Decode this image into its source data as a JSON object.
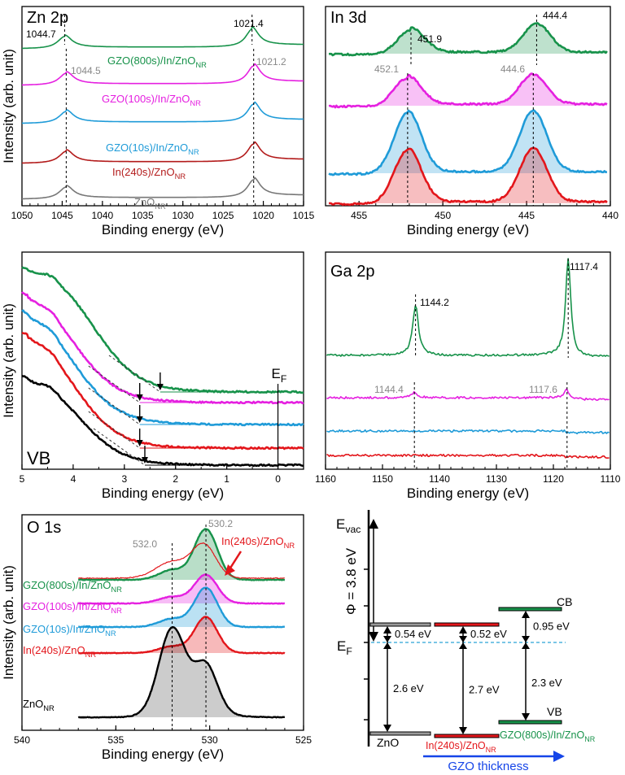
{
  "colors": {
    "green": "#17924a",
    "magenta": "#e520e0",
    "blue": "#1f9bd8",
    "red": "#e3161b",
    "black": "#000000",
    "darkred": "#b31b1b",
    "gray": "#777777",
    "ann": "#888888",
    "efline": "#2aa5d8",
    "arrowblue": "#1545e8"
  },
  "chart_data": [
    {
      "id": "zn2p",
      "type": "line",
      "title": "Zn 2p",
      "xlabel": "Binding energy (eV)",
      "ylabel": "Intensity (arb. unit)",
      "xlim": [
        1050,
        1015
      ],
      "ticks": [
        "1050",
        "1045",
        "1040",
        "1035",
        "1030",
        "1025",
        "1020",
        "1015"
      ],
      "series": [
        {
          "name": "GZO(800s)/In/ZnO_NR",
          "label_main": "GZO(800s)/In/ZnO",
          "label_sub": "NR",
          "color": "green",
          "peaks": [
            1044.7,
            1021.4
          ]
        },
        {
          "name": "GZO(100s)/In/ZnO_NR",
          "label_main": "GZO(100s)/In/ZnO",
          "label_sub": "NR",
          "color": "magenta",
          "peaks": [
            1044.5,
            1021.2
          ]
        },
        {
          "name": "GZO(10s)/In/ZnO_NR",
          "label_main": "GZO(10s)/In/ZnO",
          "label_sub": "NR",
          "color": "blue",
          "peaks": [
            1044.5,
            1021.2
          ]
        },
        {
          "name": "In(240s)/ZnO_NR",
          "label_main": "In(240s)/ZnO",
          "label_sub": "NR",
          "color": "darkred",
          "peaks": [
            1044.5,
            1021.2
          ]
        },
        {
          "name": "ZnO_NR",
          "label_main": "ZnO",
          "label_sub": "NR",
          "color": "gray",
          "peaks": [
            1044.5,
            1021.2
          ]
        }
      ],
      "annotations": [
        {
          "text": "1044.7",
          "color": "black"
        },
        {
          "text": "1021.4",
          "color": "black"
        },
        {
          "text": "1044.5",
          "color": "gray"
        },
        {
          "text": "1021.2",
          "color": "gray"
        }
      ]
    },
    {
      "id": "in3d",
      "type": "line",
      "title": "In 3d",
      "xlabel": "Binding energy (eV)",
      "xlim": [
        457,
        440
      ],
      "ticks": [
        "455",
        "450",
        "445",
        "440"
      ],
      "series": [
        {
          "name": "GZO(800s)/In/ZnO_NR",
          "color": "green",
          "peaks": [
            451.9,
            444.4
          ]
        },
        {
          "name": "GZO(100s)/In/ZnO_NR",
          "color": "magenta",
          "peaks": [
            452.1,
            444.6
          ]
        },
        {
          "name": "GZO(10s)/In/ZnO_NR",
          "color": "blue",
          "peaks": [
            452.1,
            444.6
          ]
        },
        {
          "name": "In(240s)/ZnO_NR",
          "color": "red",
          "peaks": [
            452.1,
            444.6
          ]
        }
      ],
      "annotations": [
        {
          "text": "451.9",
          "color": "black"
        },
        {
          "text": "444.4",
          "color": "black"
        },
        {
          "text": "452.1",
          "color": "gray"
        },
        {
          "text": "444.6",
          "color": "gray"
        }
      ]
    },
    {
      "id": "vb",
      "type": "line",
      "title": "VB",
      "ef_label_main": "E",
      "ef_label_sub": "F",
      "xlabel": "Binding energy (eV)",
      "ylabel": "Intensity (arb. unit)",
      "xlim": [
        5,
        -0.5
      ],
      "ticks": [
        "5",
        "4",
        "3",
        "2",
        "1",
        "0"
      ],
      "series": [
        {
          "name": "GZO(800s)/In/ZnO_NR",
          "color": "green",
          "vbm": 2.3
        },
        {
          "name": "GZO(100s)/In/ZnO_NR",
          "color": "magenta",
          "vbm": 2.7
        },
        {
          "name": "GZO(10s)/In/ZnO_NR",
          "color": "blue",
          "vbm": 2.7
        },
        {
          "name": "In(240s)/ZnO_NR",
          "color": "red",
          "vbm": 2.7
        },
        {
          "name": "ZnO_NR",
          "color": "black",
          "vbm": 2.6
        }
      ]
    },
    {
      "id": "ga2p",
      "type": "line",
      "title": "Ga 2p",
      "xlabel": "Binding energy (eV)",
      "xlim": [
        1160,
        1110
      ],
      "ticks": [
        "1160",
        "1150",
        "1140",
        "1130",
        "1120",
        "1110"
      ],
      "series": [
        {
          "name": "GZO(800s)/In/ZnO_NR",
          "color": "green",
          "peaks": [
            1144.2,
            1117.4
          ]
        },
        {
          "name": "GZO(100s)/In/ZnO_NR",
          "color": "magenta",
          "peaks": [
            1144.4,
            1117.6
          ]
        },
        {
          "name": "GZO(10s)/In/ZnO_NR",
          "color": "blue",
          "peaks": []
        },
        {
          "name": "In(240s)/ZnO_NR",
          "color": "red",
          "peaks": []
        }
      ],
      "annotations": [
        {
          "text": "1144.2",
          "color": "black"
        },
        {
          "text": "1117.4",
          "color": "black"
        },
        {
          "text": "1144.4",
          "color": "gray"
        },
        {
          "text": "1117.6",
          "color": "gray"
        }
      ]
    },
    {
      "id": "o1s",
      "type": "area",
      "title": "O 1s",
      "xlabel": "Binding energy (eV)",
      "ylabel": "Intensity (arb. unit)",
      "xlim": [
        540,
        525
      ],
      "ticks": [
        "540",
        "535",
        "530",
        "525"
      ],
      "series": [
        {
          "name": "GZO(800s)/In/ZnO_NR",
          "label_main": "GZO(800s)/In/ZnO",
          "label_sub": "NR",
          "color": "green"
        },
        {
          "name": "GZO(100s)/In/ZnO_NR",
          "label_main": "GZO(100s)/In/ZnO",
          "label_sub": "NR",
          "color": "magenta"
        },
        {
          "name": "GZO(10s)/In/ZnO_NR",
          "label_main": "GZO(10s)/In/ZnO",
          "label_sub": "NR",
          "color": "blue"
        },
        {
          "name": "In(240s)/ZnO_NR",
          "label_main": "In(240s)/ZnO",
          "label_sub": "NR",
          "color": "red"
        },
        {
          "name": "ZnO_NR",
          "label_main": "ZnO",
          "label_sub": "NR",
          "color": "black"
        }
      ],
      "peaks": [
        532.0,
        530.2
      ],
      "annotations": [
        {
          "text": "532.0",
          "color": "gray"
        },
        {
          "text": "530.2",
          "color": "gray"
        },
        {
          "text_main": "In(240s)/ZnO",
          "text_sub": "NR",
          "color": "red"
        }
      ]
    },
    {
      "id": "band",
      "type": "diagram",
      "evac_main": "E",
      "evac_sub": "vac",
      "ef_main": "E",
      "ef_sub": "F",
      "phi": "Φ = 3.8 eV",
      "cb": "CB",
      "vb": "VB",
      "columns": [
        {
          "name": "ZnO",
          "label_main": "ZnO",
          "label_sub": "",
          "color": "black",
          "cb_offset": "0.54 eV",
          "gap": "2.6 eV"
        },
        {
          "name": "In(240s)/ZnO_NR",
          "label_main": "In(240s)/ZnO",
          "label_sub": "NR",
          "color": "red",
          "cb_offset": "0.52 eV",
          "gap": "2.7 eV"
        },
        {
          "name": "GZO(800s)/In/ZnO_NR",
          "label_main": "GZO(800s)/In/ZnO",
          "label_sub": "NR",
          "color": "green",
          "cb_offset": "0.95 eV",
          "gap": "2.3 eV"
        }
      ],
      "values": {
        "phi_eV": 3.8
      },
      "thickness_label": "GZO thickness"
    }
  ]
}
